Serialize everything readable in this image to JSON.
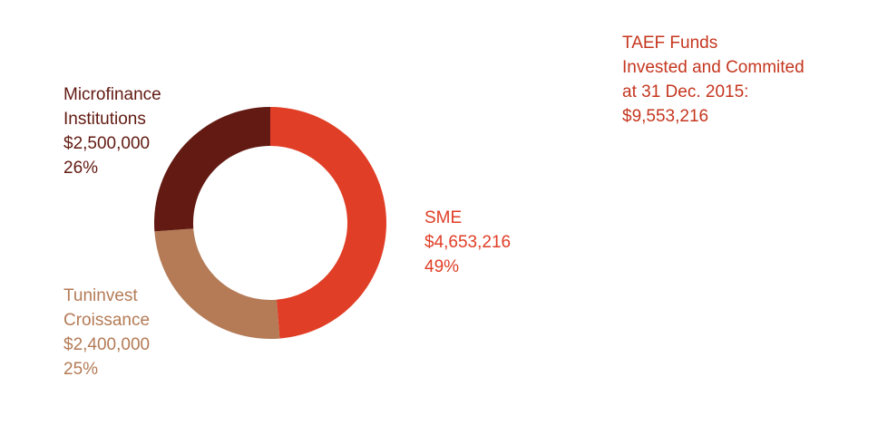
{
  "chart_data": {
    "type": "donut",
    "title": [
      "TAEF Funds",
      "Invested and Commited",
      "at 31 Dec. 2015:"
    ],
    "total": 9553216,
    "total_label": "$9,553,216",
    "categories": [
      "SME",
      "Tuninvest Croissance",
      "Microfinance Institutions"
    ],
    "values": [
      4653216,
      2400000,
      2500000
    ],
    "value_labels": [
      "$4,653,216",
      "$2,400,000",
      "$2,500,000"
    ],
    "percent_labels": [
      "49%",
      "25%",
      "26%"
    ],
    "colors": [
      "#e03e26",
      "#b47b56",
      "#621a12"
    ],
    "title_color": "#c5361f"
  }
}
